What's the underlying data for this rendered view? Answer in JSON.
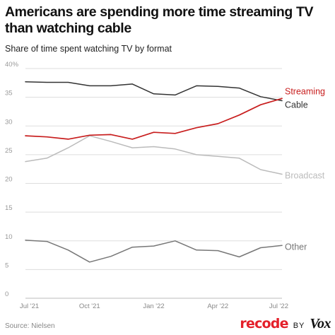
{
  "header": {
    "title": "Americans are spending more time streaming TV than watching cable",
    "subtitle": "Share of time spent watching TV by format"
  },
  "footer": {
    "source": "Source: Nielsen",
    "brand_recode": "recode",
    "brand_by": "BY",
    "brand_vox": "Vox"
  },
  "colors": {
    "streaming": "#c81e1e",
    "cable": "#333333",
    "broadcast": "#bbbbbb",
    "other": "#777777",
    "grid": "#dddddd",
    "recode_brand": "#e4202a"
  },
  "chart_data": {
    "type": "line",
    "title": "Americans are spending more time streaming TV than watching cable",
    "subtitle": "Share of time spent watching TV by format",
    "xlabel": "",
    "ylabel": "",
    "ylim": [
      0,
      40
    ],
    "yticks": [
      0,
      5,
      10,
      15,
      20,
      25,
      30,
      35,
      40
    ],
    "ytick_labels": [
      "0",
      "5",
      "10",
      "15",
      "20",
      "25",
      "30",
      "35",
      "40%"
    ],
    "x": [
      "Jul '21",
      "Aug '21",
      "Sep '21",
      "Oct '21",
      "Nov '21",
      "Dec '21",
      "Jan '22",
      "Feb '22",
      "Mar '22",
      "Apr '22",
      "May '22",
      "Jun '22",
      "Jul '22"
    ],
    "xtick_labels": [
      "Jul '21",
      "Oct '21",
      "Jan '22",
      "Apr '22",
      "Jul '22"
    ],
    "grid": true,
    "legend": "direct labels at line ends",
    "series": [
      {
        "name": "Streaming",
        "key": "streaming",
        "values": [
          28.3,
          28.1,
          27.7,
          28.4,
          28.5,
          27.7,
          28.9,
          28.7,
          29.7,
          30.4,
          31.9,
          33.7,
          34.8
        ]
      },
      {
        "name": "Cable",
        "key": "cable",
        "values": [
          37.7,
          37.6,
          37.6,
          37.0,
          37.0,
          37.3,
          35.6,
          35.4,
          37.0,
          36.9,
          36.6,
          35.1,
          34.4
        ]
      },
      {
        "name": "Broadcast",
        "key": "broadcast",
        "values": [
          23.8,
          24.4,
          26.2,
          28.3,
          27.3,
          26.2,
          26.4,
          26.0,
          25.0,
          24.7,
          24.4,
          22.4,
          21.6
        ]
      },
      {
        "name": "Other",
        "key": "other",
        "values": [
          10.1,
          9.9,
          8.4,
          6.3,
          7.3,
          8.9,
          9.1,
          10.0,
          8.4,
          8.3,
          7.2,
          8.8,
          9.2
        ]
      }
    ]
  }
}
